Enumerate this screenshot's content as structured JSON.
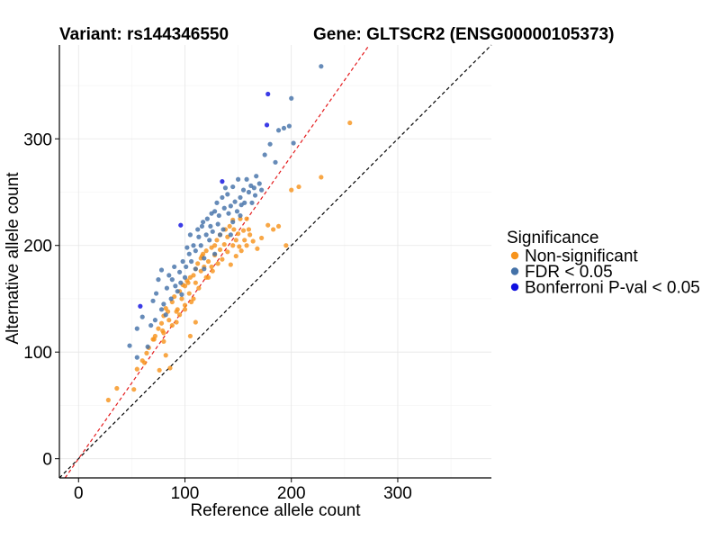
{
  "chart_data": {
    "type": "scatter",
    "title_left": "Variant: rs144346550",
    "title_right": "Gene: GLTSCR2 (ENSG00000105373)",
    "xlabel": "Reference allele count",
    "ylabel": "Alternative allele count",
    "xlim": [
      -18,
      388
    ],
    "ylim": [
      -18,
      388
    ],
    "x_ticks": [
      0,
      100,
      200,
      300
    ],
    "y_ticks": [
      0,
      100,
      200,
      300
    ],
    "grid": true,
    "legend": {
      "title": "Significance",
      "position": "right",
      "entries": [
        {
          "label": "Non-significant",
          "color": "#F7941D"
        },
        {
          "label": "FDR < 0.05",
          "color": "#4472A8"
        },
        {
          "label": "Bonferroni P-val < 0.05",
          "color": "#1010E0"
        }
      ]
    },
    "reference_lines": [
      {
        "slope": 1.0,
        "intercept": 0,
        "color": "#000000",
        "style": "dashed"
      },
      {
        "slope": 1.42,
        "intercept": 0,
        "color": "#E41A1C",
        "style": "dashed"
      }
    ],
    "series": [
      {
        "name": "Non-significant",
        "color": "#F7941D",
        "points": [
          [
            28,
            55
          ],
          [
            36,
            66
          ],
          [
            52,
            65
          ],
          [
            55,
            84
          ],
          [
            60,
            92
          ],
          [
            64,
            99
          ],
          [
            66,
            104
          ],
          [
            70,
            112
          ],
          [
            72,
            115
          ],
          [
            75,
            122
          ],
          [
            78,
            127
          ],
          [
            79,
            120
          ],
          [
            80,
            110
          ],
          [
            80,
            134
          ],
          [
            82,
            97
          ],
          [
            82,
            141
          ],
          [
            84,
            138
          ],
          [
            85,
            130
          ],
          [
            88,
            147
          ],
          [
            88,
            125
          ],
          [
            90,
            152
          ],
          [
            92,
            128
          ],
          [
            93,
            140
          ],
          [
            95,
            135
          ],
          [
            95,
            157
          ],
          [
            97,
            150
          ],
          [
            98,
            163
          ],
          [
            100,
            140
          ],
          [
            100,
            144
          ],
          [
            100,
            162
          ],
          [
            102,
            167
          ],
          [
            104,
            155
          ],
          [
            105,
            170
          ],
          [
            106,
            147
          ],
          [
            108,
            172
          ],
          [
            110,
            165
          ],
          [
            110,
            178
          ],
          [
            112,
            183
          ],
          [
            113,
            160
          ],
          [
            115,
            176
          ],
          [
            115,
            188
          ],
          [
            117,
            192
          ],
          [
            118,
            180
          ],
          [
            120,
            170
          ],
          [
            120,
            195
          ],
          [
            122,
            185
          ],
          [
            125,
            198
          ],
          [
            126,
            176
          ],
          [
            128,
            191
          ],
          [
            130,
            205
          ],
          [
            131,
            183
          ],
          [
            133,
            196
          ],
          [
            133,
            210
          ],
          [
            135,
            187
          ],
          [
            137,
            201
          ],
          [
            138,
            215
          ],
          [
            140,
            194
          ],
          [
            140,
            208
          ],
          [
            142,
            218
          ],
          [
            143,
            182
          ],
          [
            145,
            200
          ],
          [
            145,
            224
          ],
          [
            146,
            215
          ],
          [
            148,
            190
          ],
          [
            148,
            205
          ],
          [
            150,
            211
          ],
          [
            151,
            199
          ],
          [
            152,
            225
          ],
          [
            153,
            195
          ],
          [
            155,
            214
          ],
          [
            156,
            205
          ],
          [
            158,
            225
          ],
          [
            158,
            200
          ],
          [
            160,
            215
          ],
          [
            161,
            210
          ],
          [
            164,
            204
          ],
          [
            168,
            197
          ],
          [
            172,
            207
          ],
          [
            178,
            219
          ],
          [
            183,
            215
          ],
          [
            188,
            218
          ],
          [
            195,
            200
          ],
          [
            200,
            252
          ],
          [
            207,
            255
          ],
          [
            228,
            264
          ],
          [
            255,
            315
          ],
          [
            122,
            170
          ],
          [
            116,
            190
          ],
          [
            92,
            138
          ],
          [
            128,
            200
          ],
          [
            108,
            150
          ],
          [
            76,
            83
          ],
          [
            86,
            85
          ],
          [
            105,
            115
          ],
          [
            110,
            128
          ],
          [
            103,
            165
          ],
          [
            125,
            180
          ],
          [
            80,
            118
          ],
          [
            62,
            90
          ],
          [
            71,
            112
          ]
        ]
      },
      {
        "name": "FDR < 0.05",
        "color": "#4472A8",
        "points": [
          [
            48,
            106
          ],
          [
            55,
            95
          ],
          [
            55,
            122
          ],
          [
            60,
            133
          ],
          [
            65,
            105
          ],
          [
            68,
            125
          ],
          [
            70,
            148
          ],
          [
            72,
            130
          ],
          [
            73,
            155
          ],
          [
            75,
            168
          ],
          [
            78,
            140
          ],
          [
            80,
            145
          ],
          [
            82,
            135
          ],
          [
            83,
            160
          ],
          [
            85,
            172
          ],
          [
            87,
            150
          ],
          [
            88,
            168
          ],
          [
            90,
            180
          ],
          [
            91,
            162
          ],
          [
            93,
            157
          ],
          [
            95,
            175
          ],
          [
            96,
            165
          ],
          [
            98,
            185
          ],
          [
            100,
            170
          ],
          [
            101,
            180
          ],
          [
            102,
            198
          ],
          [
            104,
            192
          ],
          [
            105,
            210
          ],
          [
            106,
            185
          ],
          [
            108,
            200
          ],
          [
            110,
            195
          ],
          [
            112,
            215
          ],
          [
            113,
            208
          ],
          [
            115,
            200
          ],
          [
            116,
            218
          ],
          [
            117,
            222
          ],
          [
            118,
            188
          ],
          [
            120,
            210
          ],
          [
            121,
            225
          ],
          [
            123,
            205
          ],
          [
            124,
            218
          ],
          [
            125,
            230
          ],
          [
            126,
            213
          ],
          [
            128,
            232
          ],
          [
            130,
            240
          ],
          [
            131,
            220
          ],
          [
            132,
            228
          ],
          [
            133,
            210
          ],
          [
            135,
            245
          ],
          [
            137,
            235
          ],
          [
            138,
            254
          ],
          [
            140,
            248
          ],
          [
            141,
            230
          ],
          [
            143,
            237
          ],
          [
            145,
            222
          ],
          [
            145,
            255
          ],
          [
            147,
            241
          ],
          [
            149,
            232
          ],
          [
            150,
            262
          ],
          [
            152,
            245
          ],
          [
            153,
            238
          ],
          [
            155,
            252
          ],
          [
            156,
            240
          ],
          [
            158,
            262
          ],
          [
            160,
            250
          ],
          [
            162,
            256
          ],
          [
            163,
            240
          ],
          [
            165,
            254
          ],
          [
            166,
            247
          ],
          [
            167,
            265
          ],
          [
            170,
            258
          ],
          [
            172,
            252
          ],
          [
            175,
            285
          ],
          [
            180,
            295
          ],
          [
            185,
            278
          ],
          [
            188,
            308
          ],
          [
            193,
            310
          ],
          [
            198,
            312
          ],
          [
            200,
            338
          ],
          [
            202,
            296
          ],
          [
            228,
            368
          ],
          [
            78,
            177
          ],
          [
            128,
            192
          ],
          [
            118,
            178
          ],
          [
            136,
            215
          ],
          [
            152,
            228
          ],
          [
            110,
            178
          ],
          [
            97,
            154
          ],
          [
            143,
            210
          ]
        ]
      },
      {
        "name": "Bonferroni P-val < 0.05",
        "color": "#1010E0",
        "points": [
          [
            58,
            143
          ],
          [
            96,
            219
          ],
          [
            135,
            260
          ],
          [
            177,
            313
          ],
          [
            178,
            342
          ]
        ]
      }
    ]
  }
}
